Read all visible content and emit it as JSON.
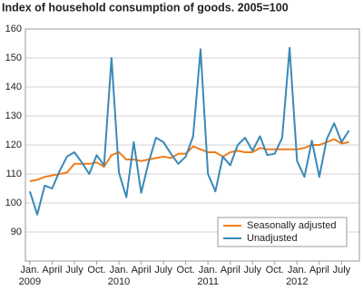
{
  "chart_data": {
    "type": "line",
    "title": "Index of household consumption of goods. 2005=100",
    "categories": [
      "Jan.",
      null,
      null,
      "April",
      null,
      null,
      "July",
      null,
      null,
      "Oct.",
      null,
      null,
      "Jan.",
      null,
      null,
      "April",
      null,
      null,
      "July",
      null,
      null,
      "Oct.",
      null,
      null,
      "Jan.",
      null,
      null,
      "April",
      null,
      null,
      "July",
      null,
      null,
      "Oct.",
      null,
      null,
      "Jan.",
      null,
      null,
      "April",
      null,
      null,
      "July",
      null
    ],
    "year_labels": [
      "2009",
      null,
      null,
      null,
      null,
      null,
      null,
      null,
      null,
      null,
      null,
      null,
      "2010",
      null,
      null,
      null,
      null,
      null,
      null,
      null,
      null,
      null,
      null,
      null,
      "2011",
      null,
      null,
      null,
      null,
      null,
      null,
      null,
      null,
      null,
      null,
      null,
      "2012",
      null,
      null,
      null,
      null,
      null,
      null,
      null
    ],
    "series": [
      {
        "name": "Seasonally adjusted",
        "color": "#f07d1a",
        "values": [
          107.5,
          108,
          109,
          109.5,
          110,
          110.5,
          113.5,
          113.5,
          113.5,
          114,
          112.5,
          116.5,
          117.5,
          115,
          115,
          114.5,
          115,
          115.5,
          116,
          115.5,
          117,
          117,
          119.5,
          118.5,
          117.5,
          117.5,
          116,
          117.5,
          118,
          117.5,
          117.5,
          119,
          118.5,
          118.5,
          118.5,
          118.5,
          118.5,
          119,
          120,
          120,
          121,
          122,
          120.5,
          121
        ]
      },
      {
        "name": "Unadjusted",
        "color": "#3a89b8",
        "values": [
          104,
          96,
          106,
          105,
          111,
          116,
          117.5,
          114,
          110,
          116.5,
          113,
          150,
          110.5,
          102,
          121,
          103.5,
          114,
          122.5,
          121,
          117,
          113.5,
          116,
          123,
          153,
          110,
          104,
          116,
          113,
          120,
          122.5,
          118,
          123,
          116.5,
          117,
          122.5,
          153.5,
          114.5,
          109,
          121.5,
          109,
          122,
          127.5,
          121,
          125
        ]
      }
    ],
    "ylim": [
      80,
      160
    ],
    "yticks": [
      90,
      100,
      110,
      120,
      130,
      140,
      150,
      160
    ],
    "grid": true,
    "legend": "lower right"
  }
}
